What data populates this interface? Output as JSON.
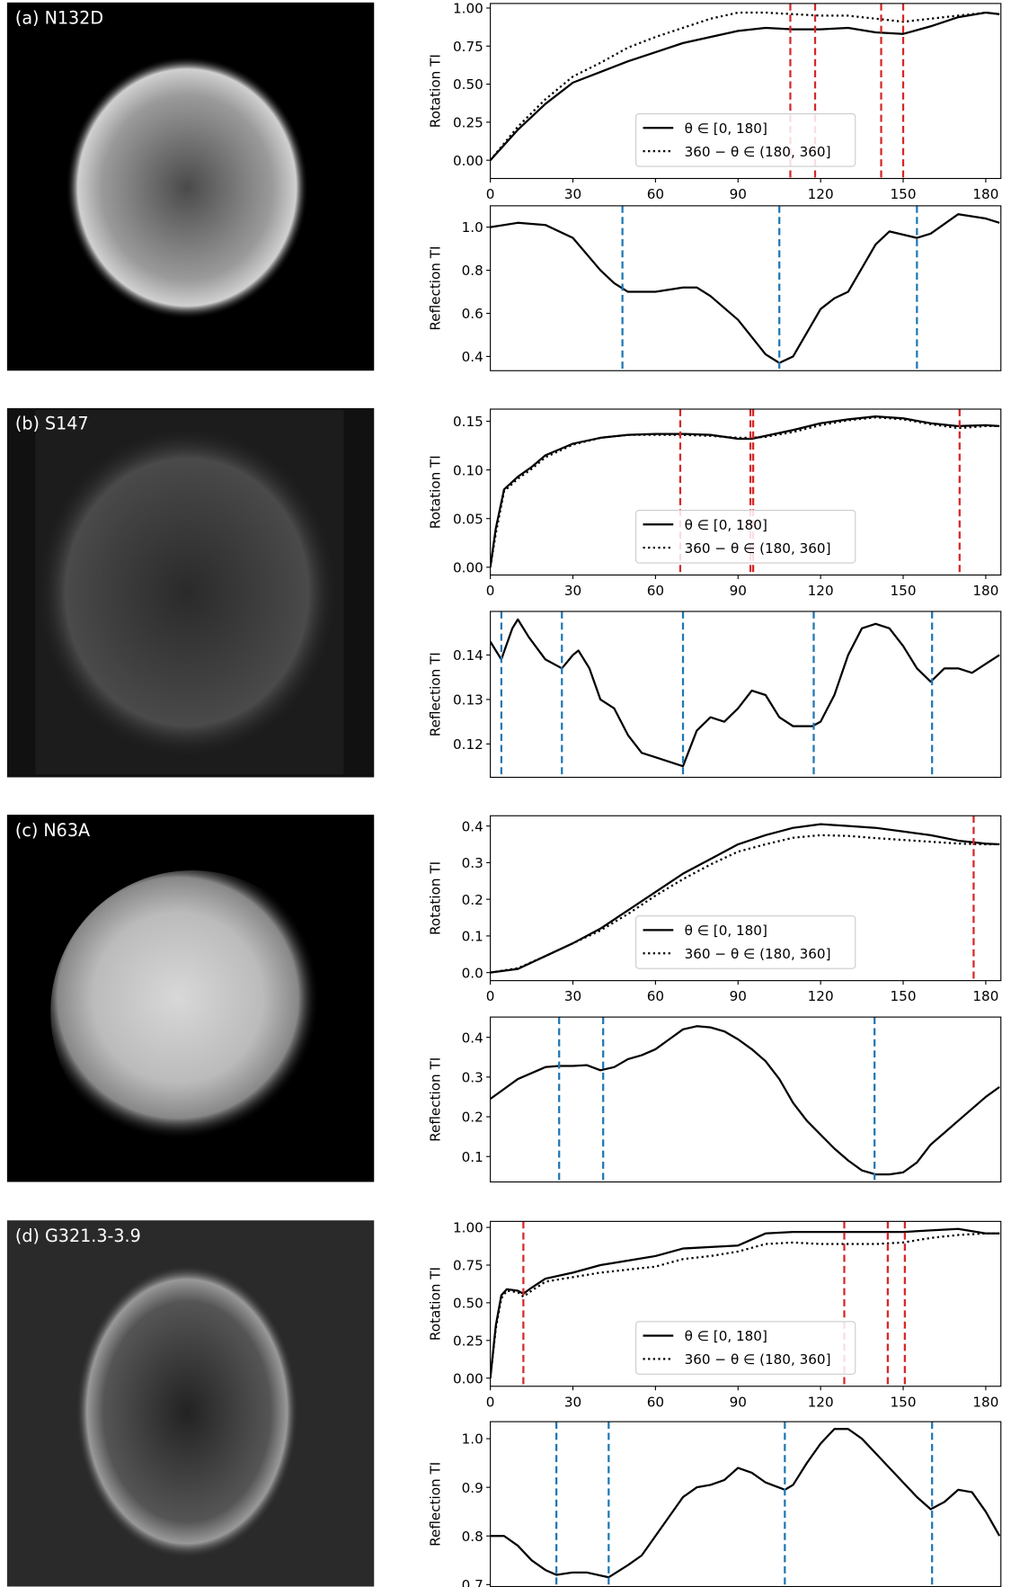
{
  "chart_data": [
    {
      "type": "line",
      "title": "(a) N132D",
      "ylabel": "Rotation TI",
      "xlim": [
        0,
        185.5
      ],
      "ylim": [
        -0.12,
        1.03
      ],
      "xticks": [
        0,
        30,
        60,
        90,
        120,
        150,
        180
      ],
      "yticks": [
        {
          "value": 0,
          "label": "0.00"
        },
        0.25,
        {
          "value": 0.5,
          "label": "0.50"
        },
        0.75,
        {
          "value": 1,
          "label": "1.00"
        }
      ],
      "x": [
        0,
        10,
        20,
        30,
        40,
        50,
        60,
        70,
        80,
        90,
        100,
        110,
        120,
        130,
        140,
        150,
        160,
        170,
        180,
        185
      ],
      "series": [
        {
          "name": "θ ∈ [0, 180]",
          "color": "#000000",
          "linestyle": "solid",
          "values": [
            0,
            0.2,
            0.37,
            0.51,
            0.58,
            0.65,
            0.71,
            0.77,
            0.81,
            0.85,
            0.87,
            0.86,
            0.86,
            0.87,
            0.84,
            0.83,
            0.88,
            0.94,
            0.97,
            0.96
          ]
        },
        {
          "name": "360 − θ ∈ (180, 360]",
          "color": "#000000",
          "linestyle": "dotted",
          "values": [
            0,
            0.22,
            0.4,
            0.55,
            0.64,
            0.74,
            0.81,
            0.87,
            0.93,
            0.97,
            0.97,
            0.96,
            0.95,
            0.95,
            0.93,
            0.91,
            0.93,
            0.95,
            0.97,
            0.96
          ]
        }
      ],
      "vlines": [
        109,
        118,
        142,
        150
      ],
      "vline_color": "#d62728",
      "legend": "lower center"
    },
    {
      "type": "line",
      "ylabel": "Reflection TI",
      "xlim": [
        0,
        185.5
      ],
      "ylim": [
        0.334,
        1.099
      ],
      "yticks": [
        0.4,
        0.6,
        0.8,
        {
          "value": 1,
          "label": "1.0"
        }
      ],
      "x": [
        0,
        10,
        20,
        30,
        40,
        45,
        50,
        60,
        70,
        75,
        80,
        90,
        100,
        105,
        110,
        120,
        125,
        130,
        140,
        145,
        155,
        160,
        170,
        180,
        185
      ],
      "series": [
        {
          "color": "#000000",
          "linestyle": "solid",
          "values": [
            1.0,
            1.02,
            1.01,
            0.95,
            0.8,
            0.74,
            0.7,
            0.7,
            0.72,
            0.72,
            0.68,
            0.57,
            0.41,
            0.37,
            0.4,
            0.62,
            0.67,
            0.7,
            0.92,
            0.98,
            0.95,
            0.97,
            1.06,
            1.04,
            1.02
          ]
        }
      ],
      "vlines": [
        48,
        105,
        155
      ],
      "vline_color": "#1f77b4"
    },
    {
      "type": "line",
      "title": "(b) S147",
      "ylabel": "Rotation TI",
      "xlim": [
        0,
        185.5
      ],
      "ylim": [
        -0.008,
        0.1625
      ],
      "xticks": [
        0,
        30,
        60,
        90,
        120,
        150,
        180
      ],
      "yticks": [
        {
          "value": 0,
          "label": "0.00"
        },
        0.05,
        {
          "value": 0.1,
          "label": "0.10"
        },
        0.15
      ],
      "x": [
        0,
        2,
        5,
        10,
        15,
        20,
        30,
        40,
        50,
        60,
        70,
        80,
        90,
        95,
        100,
        110,
        120,
        130,
        140,
        150,
        160,
        170,
        180,
        185
      ],
      "series": [
        {
          "name": "θ ∈ [0, 180]",
          "color": "#000000",
          "linestyle": "solid",
          "values": [
            0,
            0.04,
            0.08,
            0.093,
            0.103,
            0.115,
            0.127,
            0.133,
            0.136,
            0.137,
            0.137,
            0.136,
            0.132,
            0.132,
            0.135,
            0.141,
            0.148,
            0.152,
            0.155,
            0.153,
            0.148,
            0.145,
            0.146,
            0.145
          ]
        },
        {
          "name": "360 − θ ∈ (180, 360]",
          "color": "#000000",
          "linestyle": "dotted",
          "values": [
            0,
            0.035,
            0.078,
            0.091,
            0.101,
            0.113,
            0.126,
            0.133,
            0.136,
            0.136,
            0.136,
            0.135,
            0.133,
            0.133,
            0.134,
            0.139,
            0.146,
            0.151,
            0.154,
            0.152,
            0.147,
            0.143,
            0.145,
            0.145
          ]
        }
      ],
      "vlines": [
        69,
        94.5,
        95.5,
        170.5
      ],
      "vline_color": "#d62728",
      "legend": "lower center"
    },
    {
      "type": "line",
      "ylabel": "Reflection TI",
      "xlim": [
        0,
        185.5
      ],
      "ylim": [
        0.1125,
        0.1498
      ],
      "yticks": [
        0.12,
        0.13,
        0.14
      ],
      "x": [
        0,
        4,
        8,
        10,
        14,
        20,
        26,
        30,
        32,
        36,
        40,
        45,
        50,
        55,
        60,
        65,
        70,
        75,
        80,
        85,
        90,
        95,
        100,
        105,
        110,
        117,
        120,
        125,
        130,
        135,
        140,
        145,
        150,
        155,
        160,
        165,
        170,
        175,
        180,
        185
      ],
      "series": [
        {
          "color": "#000000",
          "linestyle": "solid",
          "values": [
            0.143,
            0.139,
            0.146,
            0.148,
            0.144,
            0.139,
            0.137,
            0.14,
            0.141,
            0.137,
            0.13,
            0.128,
            0.122,
            0.118,
            0.117,
            0.116,
            0.115,
            0.123,
            0.126,
            0.125,
            0.128,
            0.132,
            0.131,
            0.126,
            0.124,
            0.124,
            0.125,
            0.131,
            0.14,
            0.146,
            0.147,
            0.146,
            0.142,
            0.137,
            0.134,
            0.137,
            0.137,
            0.136,
            0.138,
            0.14
          ]
        }
      ],
      "vlines": [
        4,
        26,
        70,
        117.5,
        160.5
      ],
      "vline_color": "#1f77b4"
    },
    {
      "type": "line",
      "title": "(c) N63A",
      "ylabel": "Rotation TI",
      "xlim": [
        0,
        185.5
      ],
      "ylim": [
        -0.022,
        0.428
      ],
      "xticks": [
        0,
        30,
        60,
        90,
        120,
        150,
        180
      ],
      "yticks": [
        {
          "value": 0,
          "label": "0.0"
        },
        0.1,
        0.2,
        0.3,
        0.4
      ],
      "x": [
        0,
        10,
        20,
        30,
        40,
        50,
        60,
        70,
        80,
        90,
        100,
        110,
        120,
        130,
        140,
        150,
        160,
        170,
        180,
        185
      ],
      "series": [
        {
          "name": "θ ∈ [0, 180]",
          "color": "#000000",
          "linestyle": "solid",
          "values": [
            0,
            0.01,
            0.045,
            0.08,
            0.12,
            0.17,
            0.22,
            0.27,
            0.31,
            0.35,
            0.375,
            0.395,
            0.405,
            0.4,
            0.395,
            0.385,
            0.375,
            0.36,
            0.352,
            0.35
          ]
        },
        {
          "name": "360 − θ ∈ (180, 360]",
          "color": "#000000",
          "linestyle": "dotted",
          "values": [
            0,
            0.012,
            0.045,
            0.08,
            0.115,
            0.16,
            0.21,
            0.255,
            0.295,
            0.33,
            0.35,
            0.368,
            0.375,
            0.373,
            0.367,
            0.362,
            0.357,
            0.352,
            0.35,
            0.35
          ]
        }
      ],
      "vlines": [
        175.6
      ],
      "vline_color": "#d62728",
      "legend": "lower center"
    },
    {
      "type": "line",
      "ylabel": "Reflection TI",
      "xlim": [
        0,
        185.5
      ],
      "ylim": [
        0.036,
        0.451
      ],
      "yticks": [
        0.1,
        0.2,
        0.3,
        0.4
      ],
      "x": [
        0,
        5,
        10,
        15,
        20,
        25,
        30,
        35,
        40,
        45,
        50,
        55,
        60,
        65,
        70,
        75,
        80,
        85,
        90,
        95,
        100,
        105,
        110,
        115,
        120,
        125,
        130,
        135,
        140,
        145,
        150,
        155,
        160,
        165,
        170,
        175,
        180,
        185
      ],
      "series": [
        {
          "color": "#000000",
          "linestyle": "solid",
          "values": [
            0.245,
            0.27,
            0.295,
            0.31,
            0.325,
            0.328,
            0.328,
            0.33,
            0.317,
            0.325,
            0.345,
            0.355,
            0.37,
            0.395,
            0.42,
            0.428,
            0.425,
            0.415,
            0.395,
            0.37,
            0.34,
            0.295,
            0.235,
            0.19,
            0.155,
            0.12,
            0.09,
            0.065,
            0.055,
            0.055,
            0.06,
            0.085,
            0.13,
            0.16,
            0.19,
            0.22,
            0.25,
            0.275
          ]
        }
      ],
      "vlines": [
        25,
        41,
        139.6
      ],
      "vline_color": "#1f77b4"
    },
    {
      "type": "line",
      "title": "(d) G321.3-3.9",
      "ylabel": "Rotation TI",
      "xlim": [
        0,
        185.5
      ],
      "ylim": [
        -0.054,
        1.04
      ],
      "xticks": [
        0,
        30,
        60,
        90,
        120,
        150,
        180
      ],
      "yticks": [
        {
          "value": 0,
          "label": "0.00"
        },
        0.25,
        {
          "value": 0.5,
          "label": "0.50"
        },
        0.75,
        {
          "value": 1,
          "label": "1.00"
        }
      ],
      "x": [
        0,
        2,
        4,
        6,
        10,
        12,
        15,
        20,
        30,
        40,
        50,
        60,
        70,
        80,
        90,
        100,
        110,
        120,
        130,
        140,
        150,
        160,
        170,
        180,
        185
      ],
      "series": [
        {
          "name": "θ ∈ [0, 180]",
          "color": "#000000",
          "linestyle": "solid",
          "values": [
            0,
            0.35,
            0.55,
            0.59,
            0.58,
            0.56,
            0.6,
            0.66,
            0.7,
            0.75,
            0.78,
            0.81,
            0.86,
            0.87,
            0.88,
            0.96,
            0.97,
            0.97,
            0.97,
            0.97,
            0.97,
            0.98,
            0.99,
            0.96,
            0.96
          ]
        },
        {
          "name": "360 − θ ∈ (180, 360]",
          "color": "#000000",
          "linestyle": "dotted",
          "values": [
            0,
            0.33,
            0.53,
            0.58,
            0.57,
            0.54,
            0.58,
            0.64,
            0.67,
            0.7,
            0.72,
            0.74,
            0.79,
            0.81,
            0.84,
            0.89,
            0.9,
            0.89,
            0.89,
            0.89,
            0.9,
            0.93,
            0.95,
            0.96,
            0.96
          ]
        }
      ],
      "vlines": [
        12,
        128.6,
        144.4,
        150.6
      ],
      "vline_color": "#d62728",
      "legend": "lower center"
    },
    {
      "type": "line",
      "ylabel": "Reflection TI",
      "xlim": [
        0,
        185.5
      ],
      "ylim": [
        0.696,
        1.035
      ],
      "yticks": [
        0.7,
        0.8,
        0.9,
        {
          "value": 1,
          "label": "1.0"
        }
      ],
      "x": [
        0,
        5,
        10,
        15,
        20,
        24,
        30,
        35,
        43,
        50,
        55,
        60,
        65,
        70,
        75,
        80,
        85,
        90,
        95,
        100,
        107,
        110,
        115,
        120,
        125,
        130,
        135,
        140,
        145,
        150,
        155,
        160,
        165,
        170,
        175,
        180,
        185
      ],
      "series": [
        {
          "color": "#000000",
          "linestyle": "solid",
          "values": [
            0.8,
            0.8,
            0.78,
            0.75,
            0.73,
            0.72,
            0.725,
            0.725,
            0.715,
            0.74,
            0.76,
            0.8,
            0.84,
            0.88,
            0.9,
            0.905,
            0.915,
            0.94,
            0.93,
            0.91,
            0.895,
            0.905,
            0.95,
            0.99,
            1.02,
            1.02,
            1.0,
            0.97,
            0.94,
            0.91,
            0.88,
            0.855,
            0.87,
            0.895,
            0.89,
            0.85,
            0.8
          ]
        }
      ],
      "vlines": [
        24,
        43,
        107,
        160.5
      ],
      "vline_color": "#1f77b4"
    }
  ]
}
